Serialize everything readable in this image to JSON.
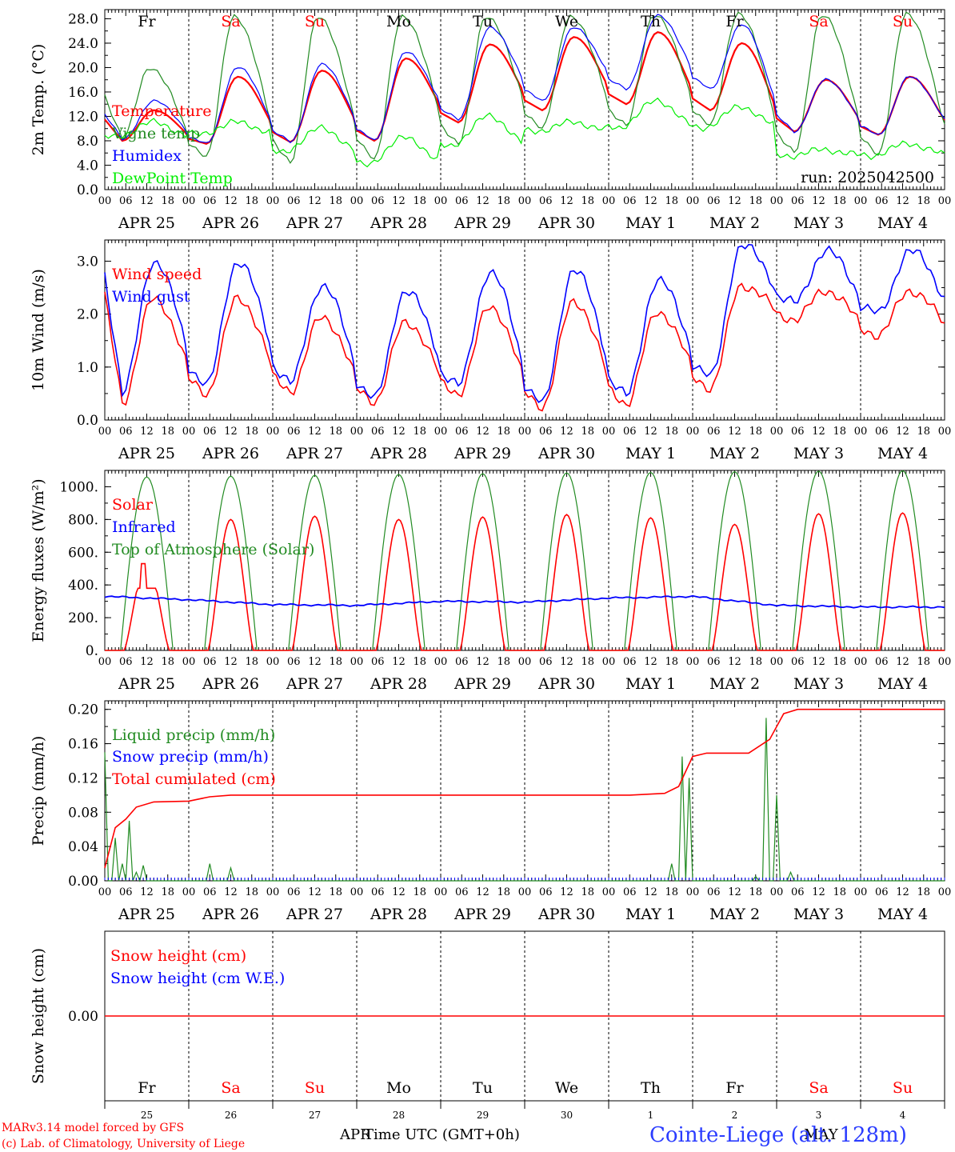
{
  "days": [
    "Fr",
    "Sa",
    "Su",
    "Mo",
    "Tu",
    "We",
    "Th",
    "Fr",
    "Sa",
    "Su"
  ],
  "weekend_days": [
    1,
    2,
    8,
    9
  ],
  "date_labels": [
    "APR 25",
    "APR 26",
    "APR 27",
    "APR 28",
    "APR 29",
    "APR 30",
    "MAY  1",
    "MAY  2",
    "MAY  3",
    "MAY  4"
  ],
  "hour_labels": [
    "00",
    "06",
    "12",
    "18"
  ],
  "bottom_day_numbers": [
    "25",
    "26",
    "27",
    "28",
    "29",
    "30",
    "1",
    "2",
    "3",
    "4"
  ],
  "footer": {
    "model": "MARv3.14 model forced by GFS",
    "copyright": "(c) Lab. of Climatology, University of Liege",
    "xlabel": "Time UTC (GMT+0h)",
    "apr_label": "APR",
    "may_label": "MAY",
    "station": "Cointe-Liege (alt. 128m)"
  },
  "colors": {
    "red": "#ff0000",
    "green": "#228b22",
    "blue": "#0000ff",
    "lime": "#00ee00"
  },
  "chart_data": [
    {
      "type": "line",
      "ylabel": "2m Temp. (°C)",
      "ylim": [
        0,
        29.5
      ],
      "yticks": [
        "0.0",
        "4.0",
        "8.0",
        "12.0",
        "16.0",
        "20.0",
        "24.0",
        "28.0"
      ],
      "run_label": "run: 2025042500",
      "series": [
        {
          "name": "Temperature",
          "color": "#ff0000",
          "daily_min": [
            8.0,
            7.5,
            7.8,
            8.0,
            11.0,
            13.0,
            14.0,
            13.0,
            9.5,
            9.0
          ],
          "daily_max": [
            13.0,
            18.5,
            19.5,
            21.5,
            23.8,
            25.0,
            25.8,
            24.0,
            18.0,
            18.5
          ]
        },
        {
          "name": "Vigne temp",
          "color": "#228b22",
          "daily_min": [
            8.5,
            5.5,
            4.5,
            5.0,
            7.5,
            10.0,
            10.5,
            10.5,
            6.0,
            5.5
          ],
          "daily_max": [
            20.0,
            28.5,
            28.5,
            28.5,
            28.5,
            28.5,
            28.8,
            29.0,
            28.8,
            29.0
          ]
        },
        {
          "name": "Humidex",
          "color": "#0000ff",
          "daily_min": [
            8.2,
            7.5,
            7.8,
            8.0,
            11.5,
            14.5,
            16.5,
            16.5,
            9.5,
            9.0
          ],
          "daily_max": [
            14.5,
            20.0,
            20.5,
            22.5,
            26.5,
            26.5,
            28.5,
            27.0,
            18.0,
            18.5
          ]
        },
        {
          "name": "DewPoint Temp",
          "color": "#00ee00",
          "daily_min": [
            8.5,
            9.0,
            6.0,
            4.0,
            7.0,
            9.5,
            10.0,
            10.0,
            5.5,
            5.5
          ],
          "daily_max": [
            11.0,
            11.0,
            10.0,
            8.5,
            12.0,
            11.0,
            14.5,
            13.5,
            6.5,
            7.5
          ]
        }
      ]
    },
    {
      "type": "line",
      "ylabel": "10m Wind (m/s)",
      "ylim": [
        0,
        3.4
      ],
      "yticks": [
        "0.0",
        "1.0",
        "2.0",
        "3.0"
      ],
      "series": [
        {
          "name": "Wind speed",
          "color": "#ff0000",
          "daily_min": [
            0.35,
            0.5,
            0.55,
            0.35,
            0.5,
            0.25,
            0.3,
            0.6,
            1.9,
            1.6
          ],
          "daily_max": [
            2.3,
            2.3,
            1.95,
            1.85,
            2.15,
            2.25,
            2.05,
            2.55,
            2.45,
            2.45
          ]
        },
        {
          "name": "Wind gust",
          "color": "#0000ff",
          "daily_min": [
            0.5,
            0.65,
            0.7,
            0.4,
            0.65,
            0.3,
            0.45,
            0.8,
            2.2,
            2.0
          ],
          "daily_max": [
            3.0,
            3.0,
            2.55,
            2.45,
            2.8,
            2.85,
            2.65,
            3.3,
            3.2,
            3.2
          ]
        }
      ]
    },
    {
      "type": "line",
      "ylabel": "Energy fluxes (W/m²)",
      "ylim": [
        0,
        1100
      ],
      "yticks": [
        "0.",
        "200.",
        "400.",
        "600.",
        "800.",
        "1000."
      ],
      "series": [
        {
          "name": "Solar",
          "color": "#ff0000",
          "daily_peak": [
            530,
            800,
            820,
            800,
            815,
            830,
            810,
            770,
            835,
            840
          ]
        },
        {
          "name": "Infrared",
          "color": "#0000ff",
          "level": [
            330,
            310,
            280,
            275,
            300,
            295,
            320,
            330,
            275,
            265
          ]
        },
        {
          "name": "Top of Atmosphere (Solar)",
          "color": "#228b22",
          "daily_peak": [
            1060,
            1065,
            1070,
            1075,
            1080,
            1085,
            1088,
            1092,
            1095,
            1098
          ]
        }
      ]
    },
    {
      "type": "line",
      "ylabel": "Precip (mm/h)",
      "ylim": [
        0,
        0.21
      ],
      "yticks": [
        "0.00",
        "0.04",
        "0.08",
        "0.12",
        "0.16",
        "0.20"
      ],
      "series": [
        {
          "name": "Liquid precip (mm/h)",
          "color": "#228b22",
          "events": [
            [
              0,
              0.15
            ],
            [
              3,
              0.05
            ],
            [
              5,
              0.02
            ],
            [
              7,
              0.07
            ],
            [
              9,
              0.01
            ],
            [
              11,
              0.018
            ],
            [
              30,
              0.02
            ],
            [
              36,
              0.015
            ],
            [
              162,
              0.02
            ],
            [
              165,
              0.145
            ],
            [
              167,
              0.12
            ],
            [
              172,
              0.0
            ],
            [
              186,
              0.005
            ],
            [
              189,
              0.19
            ],
            [
              192,
              0.1
            ],
            [
              196,
              0.01
            ]
          ]
        },
        {
          "name": "Snow precip (mm/h)",
          "color": "#0000ff",
          "events": []
        },
        {
          "name": "Total cumulated (cm)",
          "color": "#ff0000",
          "points": [
            [
              0,
              0.015
            ],
            [
              3,
              0.062
            ],
            [
              6,
              0.072
            ],
            [
              9,
              0.086
            ],
            [
              14,
              0.092
            ],
            [
              24,
              0.093
            ],
            [
              30,
              0.098
            ],
            [
              36,
              0.1
            ],
            [
              150,
              0.1
            ],
            [
              160,
              0.102
            ],
            [
              164,
              0.11
            ],
            [
              168,
              0.145
            ],
            [
              172,
              0.149
            ],
            [
              184,
              0.149
            ],
            [
              190,
              0.165
            ],
            [
              194,
              0.195
            ],
            [
              198,
              0.2
            ],
            [
              240,
              0.2
            ]
          ]
        }
      ]
    },
    {
      "type": "line",
      "ylabel": "Snow height (cm)",
      "yticks": [
        "0.00"
      ],
      "series": [
        {
          "name": "Snow height (cm)",
          "color": "#ff0000",
          "value": 0.0
        },
        {
          "name": "Snow height (cm W.E.)",
          "color": "#0000ff",
          "value": 0.0
        }
      ]
    }
  ]
}
